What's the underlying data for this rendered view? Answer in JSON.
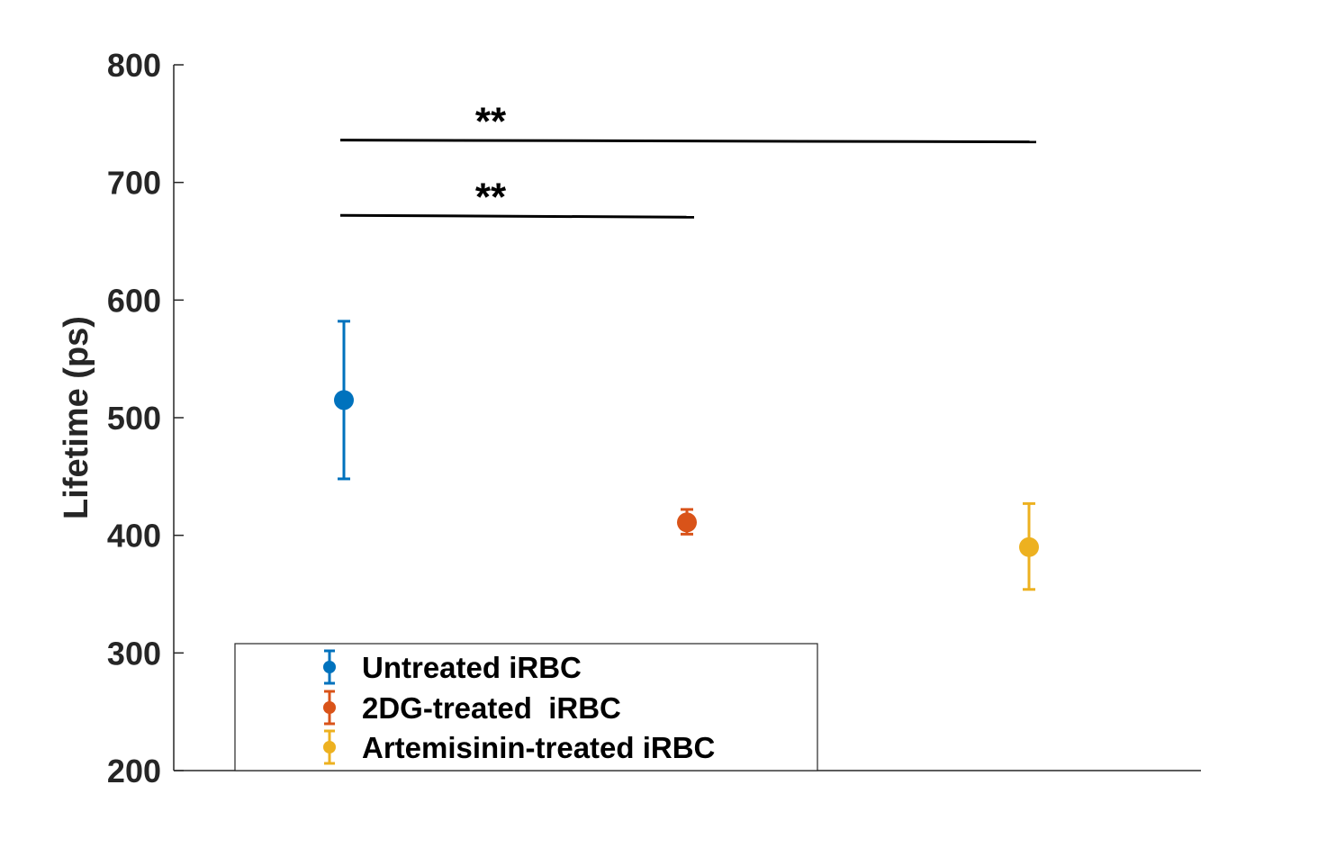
{
  "chart_data": {
    "type": "scatter",
    "title": "",
    "xlabel": "",
    "ylabel": "Lifetime (ps)",
    "ylim": [
      200,
      800
    ],
    "yticks": [
      200,
      300,
      400,
      500,
      600,
      700,
      800
    ],
    "grid": false,
    "legend_position": "bottom-left",
    "series": [
      {
        "name": "Untreated iRBC",
        "x": 1,
        "y": 515,
        "err_low": 448,
        "err_high": 582,
        "color": "#0072BD"
      },
      {
        "name": "2DG-treated  iRBC",
        "x": 2,
        "y": 411,
        "err_low": 401,
        "err_high": 422,
        "color": "#D95319"
      },
      {
        "name": "Artemisinin-treated iRBC",
        "x": 3,
        "y": 390,
        "err_low": 354,
        "err_high": 427,
        "color": "#EDB120"
      }
    ],
    "annotations": [
      {
        "label": "**",
        "from_x": 1,
        "to_x": 3,
        "y": 736
      },
      {
        "label": "**",
        "from_x": 1,
        "to_x": 2,
        "y": 672
      }
    ]
  }
}
